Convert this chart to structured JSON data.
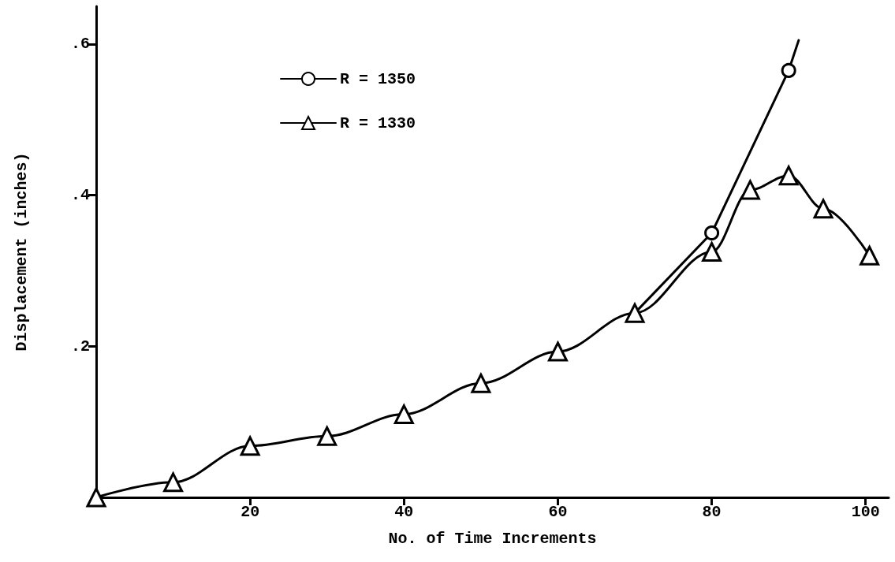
{
  "chart_data": {
    "type": "line",
    "xlabel": "No. of Time Increments",
    "ylabel": "Displacement (inches)",
    "xlim": [
      0,
      103
    ],
    "xticks": [
      20,
      40,
      60,
      80,
      100
    ],
    "ylim": [
      0,
      0.65
    ],
    "yticks": [
      {
        "value": 0.2,
        "label": ".2"
      },
      {
        "value": 0.4,
        "label": ".4"
      },
      {
        "value": 0.6,
        "label": ".6"
      }
    ],
    "grid": false,
    "legend": "top left",
    "line_style": "solid",
    "series": [
      {
        "name": "R = 1350",
        "color": "#000000",
        "marker": "circle",
        "x": [
          80,
          90
        ],
        "values": [
          0.35,
          0.565
        ]
      },
      {
        "name": "R = 1330",
        "color": "#000000",
        "marker": "triangle",
        "x": [
          0,
          10,
          20,
          30,
          40,
          50,
          60,
          70,
          80,
          85,
          90,
          94.5,
          100.5
        ],
        "values": [
          0,
          0.02,
          0.068,
          0.081,
          0.11,
          0.151,
          0.193,
          0.244,
          0.325,
          0.407,
          0.426,
          0.382,
          0.32
        ]
      },
      {
        "color": "#000000",
        "marker": "none",
        "x": [
          70,
          80,
          85,
          90,
          91.3
        ],
        "values": [
          0.244,
          0.35,
          null,
          0.565,
          0.605
        ]
      }
    ]
  }
}
